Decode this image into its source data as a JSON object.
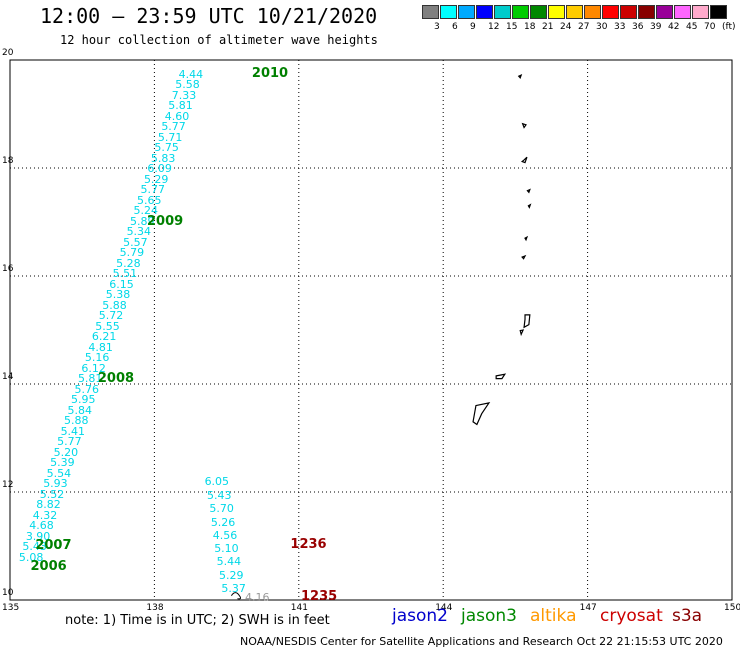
{
  "header": {
    "title": "12:00 – 23:59 UTC 10/21/2020",
    "subtitle": "12 hour collection of altimeter wave heights"
  },
  "color_scale": {
    "colors": [
      "#808080",
      "#00ffff",
      "#00aaff",
      "#0000ff",
      "#00cccc",
      "#00cc00",
      "#008800",
      "#ffff00",
      "#ffcc00",
      "#ff8800",
      "#ff0000",
      "#cc0000",
      "#880000",
      "#990099",
      "#ff66ff",
      "#ffaacc",
      "#000000"
    ],
    "labels": [
      "3",
      "6",
      "9",
      "12",
      "15",
      "18",
      "21",
      "24",
      "27",
      "30",
      "33",
      "36",
      "39",
      "42",
      "45",
      "70",
      "(ft)"
    ]
  },
  "map": {
    "lon_ticks": [
      "135",
      "138",
      "141",
      "144",
      "147",
      "150"
    ],
    "lat_ticks": [
      "10",
      "12",
      "14",
      "16",
      "18",
      "20"
    ],
    "lon_range": [
      135,
      150
    ],
    "lat_range": [
      10,
      20
    ],
    "grid": true
  },
  "tracks": {
    "west": {
      "values": [
        "4.44",
        "5.58",
        "7.33",
        "5.81",
        "4.60",
        "5.77",
        "5.71",
        "5.75",
        "5.83",
        "6.09",
        "5.29",
        "5.77",
        "5.65",
        "5.24",
        "5.89",
        "5.34",
        "5.57",
        "5.79",
        "5.28",
        "5.51",
        "6.15",
        "5.38",
        "5.88",
        "5.72",
        "5.55",
        "6.21",
        "4.81",
        "5.16",
        "6.12",
        "5.81",
        "5.76",
        "5.95",
        "5.84",
        "5.88",
        "5.41",
        "5.77",
        "5.20",
        "5.39",
        "5.54",
        "5.93",
        "5.52",
        "8.82",
        "4.32",
        "4.68",
        "3.90",
        "5.43",
        "5.08"
      ],
      "start": [
        4.44,
        138.92,
        19.75
      ],
      "end": [
        5.08,
        135.6,
        10.8
      ]
    },
    "east": {
      "values": [
        "6.05",
        "5.43",
        "5.70",
        "5.26",
        "4.56",
        "5.10",
        "5.44",
        "5.29",
        "5.37"
      ],
      "extra": "4.16"
    }
  },
  "pass_labels": [
    {
      "text": "2010",
      "color": "green"
    },
    {
      "text": "2009",
      "color": "green"
    },
    {
      "text": "2008",
      "color": "green"
    },
    {
      "text": "2007",
      "color": "green"
    },
    {
      "text": "2006",
      "color": "green"
    },
    {
      "text": "1236",
      "color": "red"
    },
    {
      "text": "1235",
      "color": "red"
    }
  ],
  "footer": {
    "note": "note: 1) Time is in UTC; 2) SWH is in feet",
    "satellites": [
      {
        "name": "jason2",
        "color": "#0000cc"
      },
      {
        "name": "jason3",
        "color": "#008800"
      },
      {
        "name": "altika",
        "color": "#ff9900"
      },
      {
        "name": "cryosat",
        "color": "#cc0000"
      },
      {
        "name": "s3a",
        "color": "#880000"
      }
    ],
    "credit": "NOAA/NESDIS Center for Satellite Applications and Research    Oct 22 21:15:53 UTC 2020"
  }
}
